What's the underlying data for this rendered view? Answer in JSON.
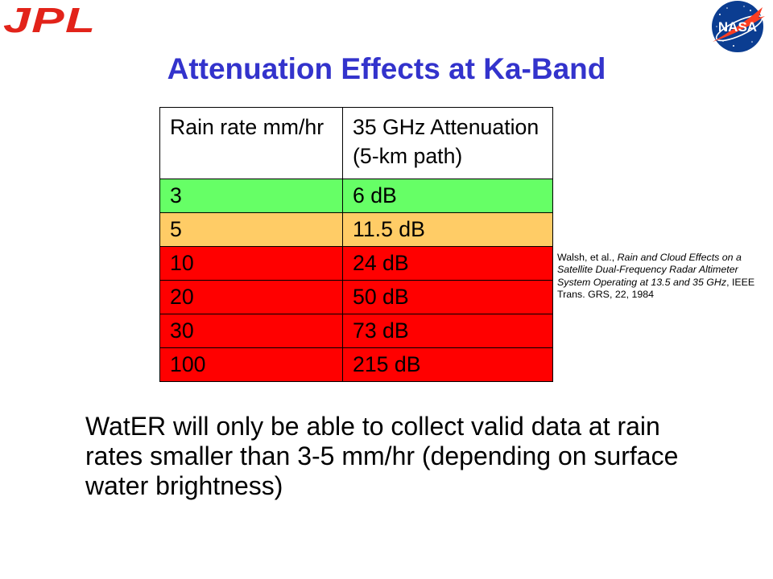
{
  "logos": {
    "jpl_text": "JPL",
    "jpl_color": "#E2231A",
    "nasa_text": "NASA",
    "nasa_blue": "#0B3D91",
    "nasa_red": "#FC3D21"
  },
  "slide": {
    "title": "Attenuation Effects at Ka-Band",
    "title_color": "#3333CC",
    "table": {
      "header": {
        "rain_rate": "Rain rate mm/hr",
        "attenuation_lines": [
          "35 GHz Attenuation",
          "(5-km path)"
        ]
      },
      "rows": [
        {
          "rain_rate": "3",
          "attenuation": "6 dB",
          "color": "#66FF66"
        },
        {
          "rain_rate": "5",
          "attenuation": "11.5 dB",
          "color": "#FFCC66"
        },
        {
          "rain_rate": "10",
          "attenuation": "24 dB",
          "color": "#FF0000"
        },
        {
          "rain_rate": "20",
          "attenuation": "50 dB",
          "color": "#FF0000"
        },
        {
          "rain_rate": "30",
          "attenuation": "73 dB",
          "color": "#FF0000"
        },
        {
          "rain_rate": "100",
          "attenuation": "215 dB",
          "color": "#FF0000"
        }
      ]
    },
    "citation": {
      "authors": "Walsh, et al., ",
      "paper_title": "Rain and Cloud Effects on a Satellite Dual-Frequency Radar Altimeter System Operating at 13.5 and 35 GHz",
      "source": ", IEEE Trans. GRS, 22, 1984"
    },
    "body_text": "WatER will only be able to collect valid data at rain rates smaller than 3-5 mm/hr (depending on surface water brightness)"
  }
}
